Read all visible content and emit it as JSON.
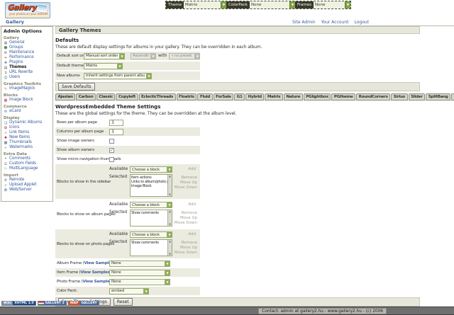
{
  "colors": {
    "link": "#3c5e9e",
    "row_grey": "#ebebe0",
    "select_arrow_green": "#8fb052"
  },
  "header": {
    "logo": {
      "word": "Gallery",
      "tagline": "your photos on your website"
    },
    "toolbar": {
      "theme_label": "Theme",
      "theme_value": "Matrix",
      "colorpack_label": "ColorPack",
      "colorpack_value": "None",
      "frames_label": "Frames",
      "frames_value": "None"
    },
    "breadcrumb": "Gallery",
    "links": [
      "Site Admin",
      "Your Account",
      "Logout"
    ]
  },
  "sidebar": {
    "title": "Admin Options",
    "sections": [
      {
        "label": "Gallery",
        "items": [
          {
            "label": "General",
            "icon": "general-icon",
            "glyph": "▦",
            "color": "#7a7a7a"
          },
          {
            "label": "Groups",
            "icon": "groups-icon",
            "glyph": "☻",
            "color": "#3b7d3b"
          },
          {
            "label": "Maintenance",
            "icon": "maintenance-icon",
            "glyph": "⚙",
            "color": "#667"
          },
          {
            "label": "Performance",
            "icon": "performance-icon",
            "glyph": "➠",
            "color": "#d2691e"
          },
          {
            "label": "Plugins",
            "icon": "plugins-icon",
            "glyph": "❖",
            "color": "#3a6ea5"
          },
          {
            "label": "Themes",
            "icon": "themes-icon",
            "glyph": "▤",
            "color": "#555",
            "active": true
          },
          {
            "label": "URL Rewrite",
            "icon": "url-rewrite-icon",
            "glyph": "➲",
            "color": "#8b4513"
          },
          {
            "label": "Users",
            "icon": "users-icon",
            "glyph": "☺",
            "color": "#3a6ea5"
          }
        ]
      },
      {
        "label": "Graphics Toolkits",
        "items": [
          {
            "label": "ImageMagick",
            "icon": "imagemagick-icon",
            "glyph": "✎",
            "color": "#c87137"
          }
        ]
      },
      {
        "label": "Blocks",
        "items": [
          {
            "label": "Image Block",
            "icon": "image-block-icon",
            "glyph": "▦",
            "color": "#b03030"
          }
        ]
      },
      {
        "label": "Commerce",
        "items": [
          {
            "label": "eCard",
            "icon": "ecard-icon",
            "glyph": "✉",
            "color": "#3a6ea5"
          }
        ]
      },
      {
        "label": "Display",
        "items": [
          {
            "label": "Dynamic Albums",
            "icon": "dynamic-albums-icon",
            "glyph": "❏",
            "color": "#3a6ea5"
          },
          {
            "label": "Icons",
            "icon": "icons-icon",
            "glyph": "✿",
            "color": "#c03060"
          },
          {
            "label": "Link Items",
            "icon": "link-items-icon",
            "glyph": "∞",
            "color": "#777"
          },
          {
            "label": "New Items",
            "icon": "new-items-icon",
            "glyph": "✹",
            "color": "#d22"
          },
          {
            "label": "Thumbnails",
            "icon": "thumbnails-icon",
            "glyph": "▩",
            "color": "#3a6ea5"
          },
          {
            "label": "Watermarks",
            "icon": "watermarks-icon",
            "glyph": "≈",
            "color": "#3a8ab0"
          }
        ]
      },
      {
        "label": "Extra Data",
        "items": [
          {
            "label": "Comments",
            "icon": "comments-icon",
            "glyph": "❝",
            "color": "#2e8b57"
          },
          {
            "label": "Custom Fields",
            "icon": "custom-fields-icon",
            "glyph": "☰",
            "color": "#777"
          },
          {
            "label": "MultiLanguage",
            "icon": "multilanguage-icon",
            "glyph": "⚐",
            "color": "#2e8b57"
          }
        ]
      },
      {
        "label": "Import",
        "items": [
          {
            "label": "Remote",
            "icon": "remote-icon",
            "glyph": "✆",
            "color": "#555"
          },
          {
            "label": "Upload Applet",
            "icon": "upload-applet-icon",
            "glyph": "➶",
            "color": "#2e8b57"
          },
          {
            "label": "Web/Server",
            "icon": "web-server-icon",
            "glyph": "❂",
            "color": "#3a6ea5"
          }
        ]
      }
    ]
  },
  "main": {
    "page_title": "Gallery Themes",
    "defaults": {
      "heading": "Defaults",
      "description": "These are default display settings for albums in your gallery. They can be overridden in each album.",
      "sort_row": {
        "label": "Default sort order",
        "order_value": "Manual sort order",
        "direction_value": "Ascending",
        "with_label": "with",
        "preset_value": "« no preset »"
      },
      "theme_row": {
        "label": "Default theme",
        "value": "Matrix"
      },
      "albums_row": {
        "label": "New albums",
        "value": "Inherit settings from parent album"
      },
      "save_button": "Save Defaults"
    },
    "tabs": {
      "items": [
        "Ajaxian",
        "Carbon",
        "Classic",
        "Copyleft",
        "EclecticThreads",
        "Floatrix",
        "Fluid",
        "ForSale",
        "G1",
        "Hybrid",
        "Matrix",
        "Nature",
        "PGlightbox",
        "PGtheme",
        "RoundCorners",
        "Siriux",
        "Slider",
        "SplitBang",
        "Sun",
        "Tile",
        "WordpressEmbedded"
      ],
      "active": "WordpressEmbedded"
    },
    "theme_settings": {
      "heading": "WordpressEmbedded Theme Settings",
      "description": "These are the global settings for the theme. They can be overridden at the album level.",
      "rows_per_page": {
        "label": "Rows per album page",
        "value": "3"
      },
      "cols_per_page": {
        "label": "Columns per album page",
        "value": "3"
      },
      "show_image_owners": {
        "label": "Show image owners",
        "checked": false
      },
      "show_album_owners": {
        "label": "Show album owners",
        "checked": true
      },
      "show_micro_nav": {
        "label": "Show micro navigation thumbnails",
        "checked": false
      },
      "blocks_ui": {
        "available_label": "Available",
        "selected_label": "Selected",
        "choose_placeholder": "Choose a block",
        "add_label": "Add",
        "remove_label": "Remove",
        "move_up_label": "Move Up",
        "move_down_label": "Move Down"
      },
      "block_rows": {
        "sidebar": {
          "label": "Blocks to show in the sidebar",
          "selected": [
            "Item actions",
            "Links to album/photo peers",
            "Image Block"
          ]
        },
        "album": {
          "label": "Blocks to show on album pages",
          "selected": [
            "Show comments"
          ]
        },
        "photo": {
          "label": "Blocks to show on photo pages",
          "selected": [
            "Show comments"
          ]
        }
      },
      "frame_rows": {
        "album": {
          "prefix": "Album Frame (",
          "link": "View Samples",
          "suffix": "):",
          "value": "None"
        },
        "item": {
          "prefix": "Item Frame (",
          "link": "View Samples",
          "suffix": "):",
          "value": "None"
        },
        "photo": {
          "prefix": "Photo Frame (",
          "link": "View Samples",
          "suffix": "):",
          "value": "None"
        }
      },
      "color_pack": {
        "label": "Color Pack:",
        "value": "embed"
      },
      "save_button": "Save Theme Settings",
      "reset_button": "Reset"
    }
  },
  "footer": {
    "badges": [
      {
        "left": "W3C",
        "right": "XHTML 1.0"
      },
      {
        "left": "",
        "right": "GALLERY 2"
      },
      {
        "left": "WAP",
        "right": "GALLERY"
      }
    ],
    "text": "Contact: admin at gallery2.hu - www.gallery2.hu - (c) 2006"
  }
}
